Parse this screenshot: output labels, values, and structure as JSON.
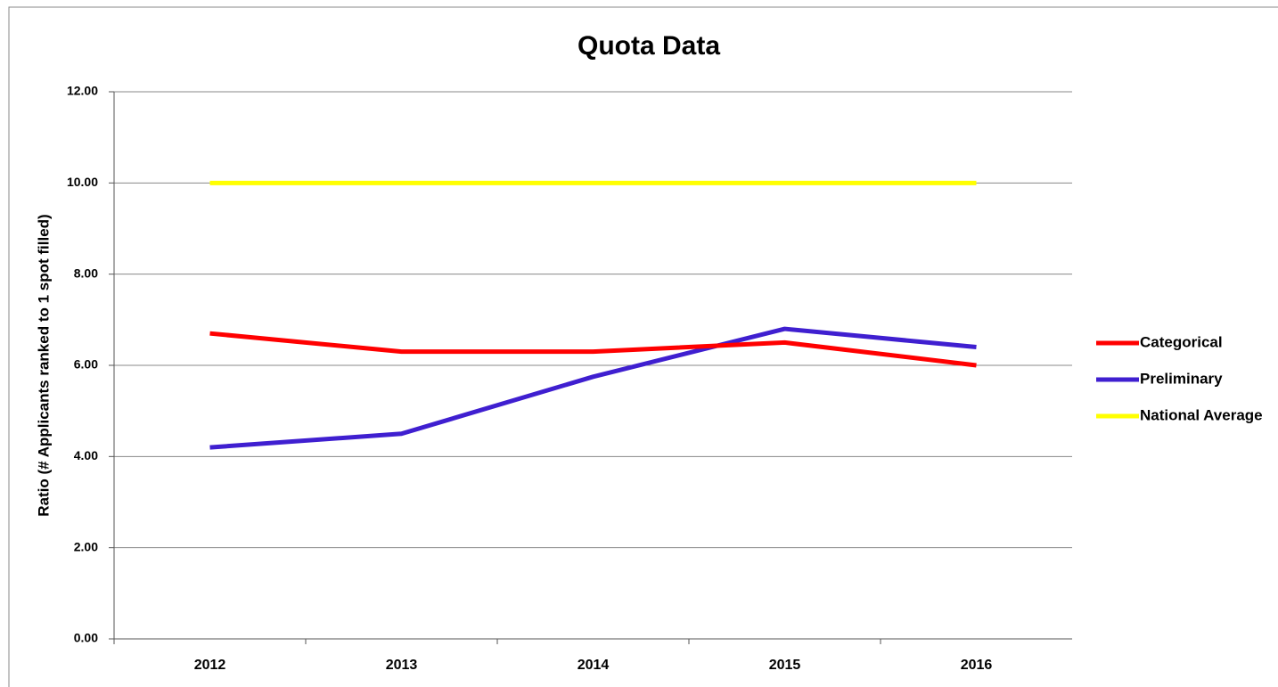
{
  "chart_data": {
    "type": "line",
    "title": "Quota Data",
    "y_label": "Ratio (# Applicants ranked to 1 spot filled)",
    "categories": [
      "2012",
      "2013",
      "2014",
      "2015",
      "2016"
    ],
    "series": [
      {
        "name": "Categorical",
        "color": "#ff0000",
        "values": [
          6.7,
          6.3,
          6.3,
          6.5,
          6.0
        ]
      },
      {
        "name": "Preliminary",
        "color": "#3f1fd0",
        "values": [
          4.2,
          4.5,
          5.75,
          6.8,
          6.4
        ]
      },
      {
        "name": "National Average",
        "color": "#ffff00",
        "values": [
          10,
          10,
          10,
          10,
          10
        ]
      }
    ],
    "ylim": [
      0,
      12
    ],
    "yticks": [
      {
        "value": 0,
        "label": "0.00"
      },
      {
        "value": 2,
        "label": "2.00"
      },
      {
        "value": 4,
        "label": "4.00"
      },
      {
        "value": 6,
        "label": "6.00"
      },
      {
        "value": 8,
        "label": "8.00"
      },
      {
        "value": 10,
        "label": "10.00"
      },
      {
        "value": 12,
        "label": "12.00"
      }
    ],
    "grid": true,
    "legend": "right"
  }
}
